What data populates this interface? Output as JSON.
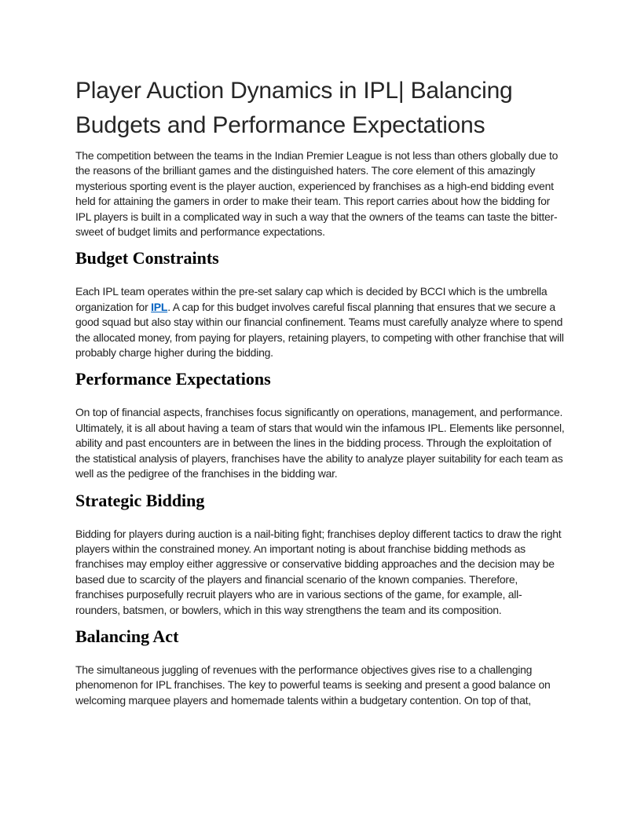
{
  "document": {
    "title_lines": [
      "Player Auction Dynamics in IPL| Balancing",
      "Budgets and Performance Expectations"
    ],
    "intro": "The competition between the teams in the Indian Premier League is not less than others globally due to the reasons of the brilliant games and the distinguished haters. The core element of this amazingly mysterious sporting event is the player auction, experienced by franchises as a high-end bidding event held for attaining the gamers in order to make their team. This report carries about how the bidding for IPL players is built in a complicated way in such a way that the owners of the teams can taste the bitter-sweet of budget limits and performance expectations.",
    "sections": [
      {
        "heading": "Budget Constraints",
        "para_before_link": "Each IPL team operates within the pre-set salary cap which is decided by BCCI which is the umbrella organization for ",
        "link_text": "IPL",
        "para_after_link": ". A cap for this budget involves careful fiscal planning that ensures that we secure a good squad but also stay within our financial confinement. Teams must carefully analyze where to spend the allocated money, from paying for players, retaining players, to competing with other franchise that will probably charge higher during the bidding."
      },
      {
        "heading": "Performance Expectations",
        "paragraph": "On top of financial aspects, franchises focus significantly on operations, management, and performance. Ultimately, it is all about having a team of stars that would win the infamous IPL. Elements like personnel, ability and past encounters are in between the lines in the bidding process. Through the exploitation of the statistical analysis of players, franchises have the ability to analyze player suitability for each team as well as the pedigree of the franchises in the bidding war."
      },
      {
        "heading": "Strategic Bidding",
        "paragraph": "Bidding for players during auction is a nail-biting fight; franchises deploy different tactics to draw the right players within the constrained money. An important noting is about franchise bidding methods as franchises may employ either aggressive or conservative bidding approaches and the decision may be based due to scarcity of the players and financial scenario of the known companies. Therefore, franchises purposefully recruit players who are in various sections of the game, for example, all-rounders, batsmen, or bowlers, which in this way strengthens the team and its composition."
      },
      {
        "heading": "Balancing Act",
        "paragraph": "The simultaneous juggling of revenues with the performance objectives gives rise to a challenging phenomenon for IPL franchises. The key to powerful teams is seeking and present a good balance on welcoming marquee players and homemade talents within a budgetary contention. On top of that,"
      }
    ],
    "colors": {
      "title": "#262626",
      "body": "#1f1f1f",
      "heading": "#000000",
      "link": "#0563c1",
      "page_background": "#ffffff"
    }
  }
}
